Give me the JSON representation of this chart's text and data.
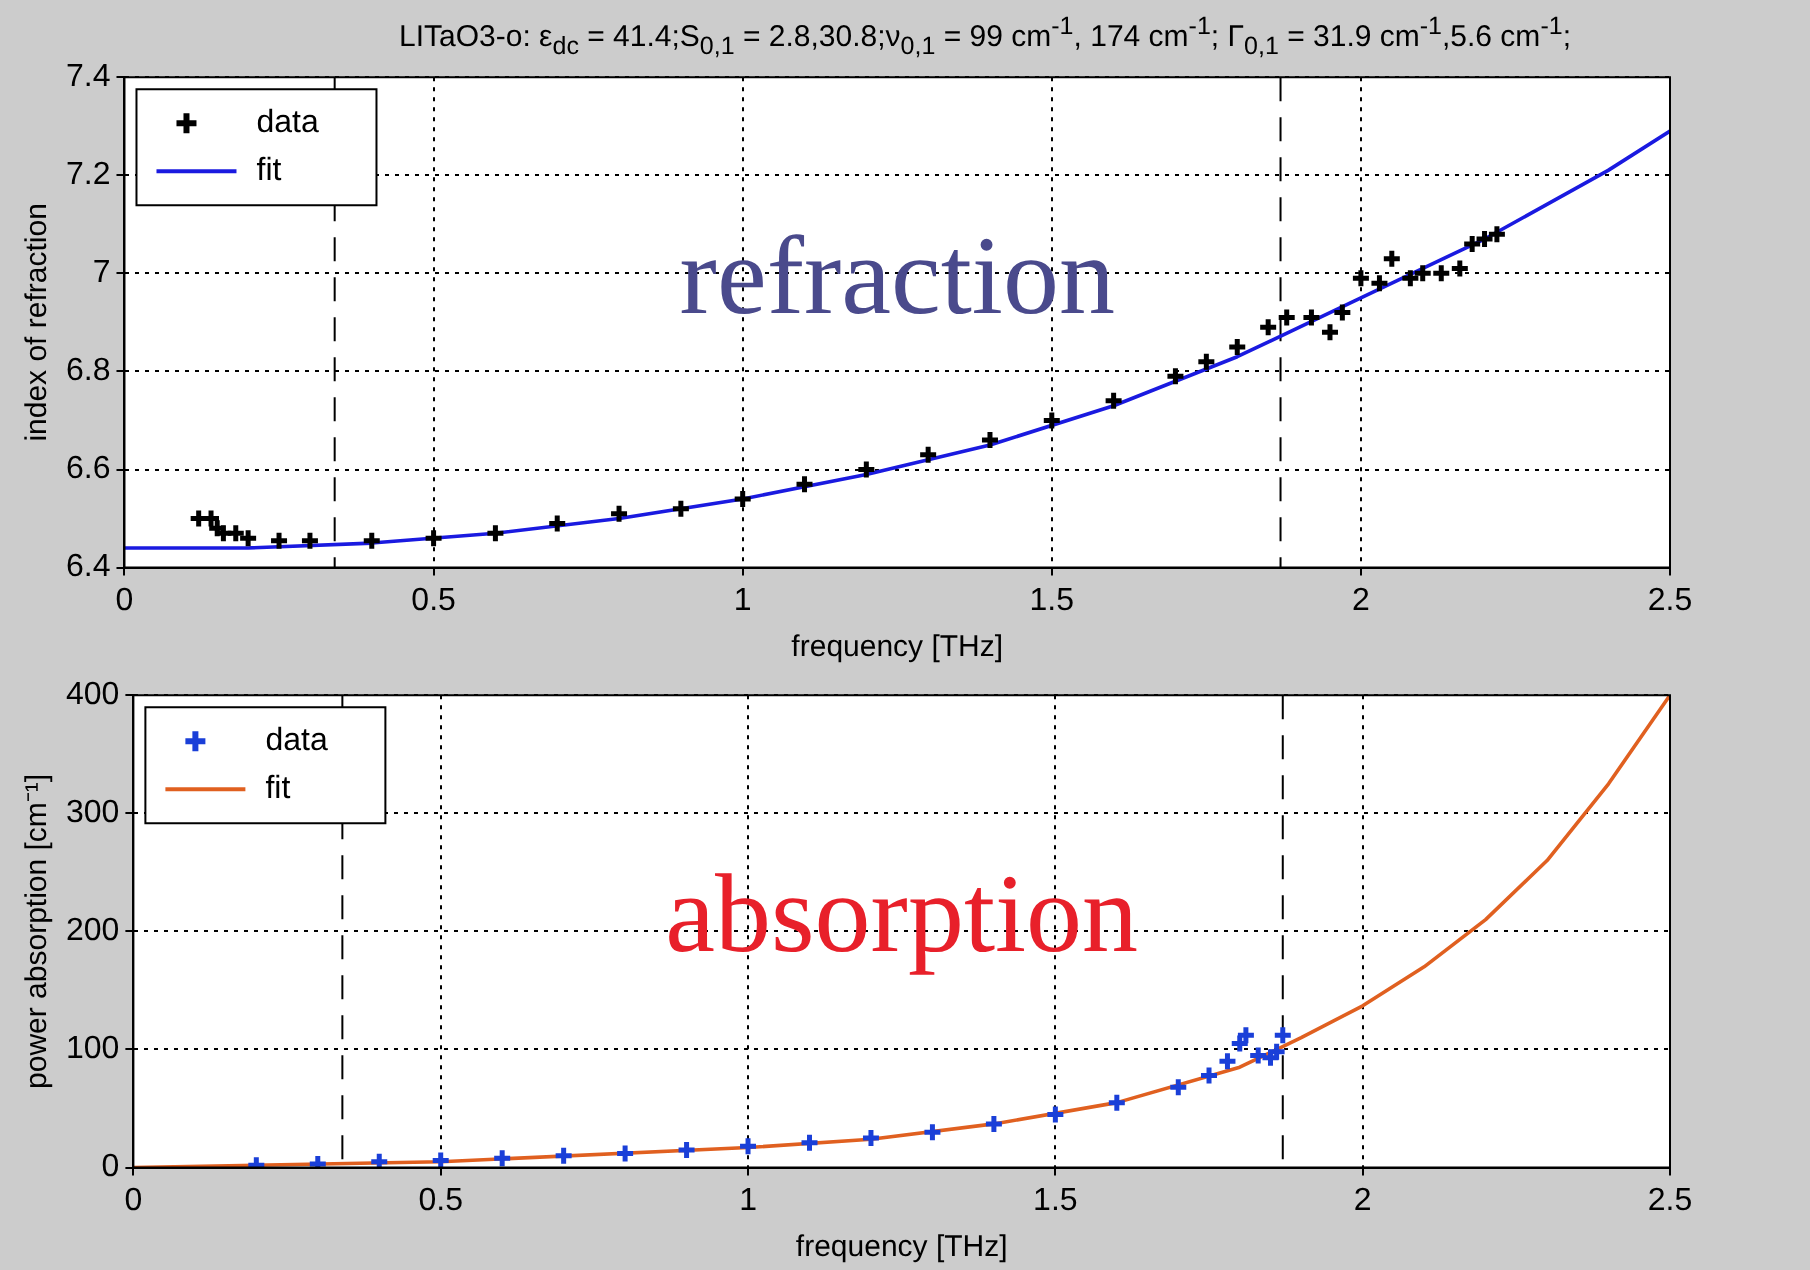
{
  "chart_data": [
    {
      "type": "scatter",
      "title": "LITaO3-o: ε$_{dc}$ = 41.4;S$_{0,1}$ = 2.8,30.8;ν$_{0,1}$ = 99 cm$^{-1}$, 174 cm$^{-1}$; Γ$_{0,1}$ = 31.9 cm$^{-1}$,5.6 cm$^{-1}$;",
      "xlabel": "frequency [THz]",
      "ylabel": "index of refraction",
      "xlim": [
        0,
        2.5
      ],
      "xticks": [
        0,
        0.5,
        1,
        1.5,
        2,
        2.5
      ],
      "ylim": [
        6.4,
        7.4
      ],
      "yticks": [
        6.4,
        6.6,
        6.8,
        7,
        7.2,
        7.4
      ],
      "grid": true,
      "legend": "top left",
      "annotations": [
        "refraction"
      ],
      "ref_lines": [
        {
          "axis": "x",
          "value": 0.34,
          "line_style": "dashed",
          "color": "#000000"
        },
        {
          "axis": "x",
          "value": 1.87,
          "line_style": "dashed",
          "color": "#000000"
        }
      ],
      "series": [
        {
          "name": "data",
          "type": "scatter",
          "marker": "cross",
          "color": "#000000",
          "x": [
            0.12,
            0.14,
            0.15,
            0.16,
            0.18,
            0.2,
            0.25,
            0.3,
            0.4,
            0.5,
            0.6,
            0.7,
            0.8,
            0.9,
            1.0,
            1.1,
            1.2,
            1.3,
            1.4,
            1.5,
            1.6,
            1.7,
            1.75,
            1.8,
            1.85,
            1.88,
            1.92,
            1.95,
            1.97,
            2.0,
            2.03,
            2.05,
            2.08,
            2.1,
            2.13,
            2.16,
            2.18,
            2.2,
            2.22
          ],
          "values": [
            6.5,
            6.5,
            6.48,
            6.47,
            6.47,
            6.46,
            6.455,
            6.455,
            6.455,
            6.46,
            6.47,
            6.49,
            6.51,
            6.52,
            6.54,
            6.57,
            6.6,
            6.63,
            6.66,
            6.7,
            6.74,
            6.79,
            6.82,
            6.85,
            6.89,
            6.91,
            6.91,
            6.88,
            6.92,
            6.99,
            6.98,
            7.03,
            6.99,
            7.0,
            7.0,
            7.01,
            7.06,
            7.07,
            7.08
          ]
        },
        {
          "name": "fit",
          "type": "line",
          "marker": "none",
          "color": "#1a1ae0",
          "x": [
            0,
            0.2,
            0.4,
            0.6,
            0.8,
            1.0,
            1.2,
            1.4,
            1.6,
            1.8,
            1.9,
            2.0,
            2.2,
            2.4,
            2.5
          ],
          "values": [
            6.44,
            6.44,
            6.45,
            6.47,
            6.5,
            6.54,
            6.59,
            6.65,
            6.73,
            6.83,
            6.89,
            6.95,
            7.07,
            7.21,
            7.29
          ]
        }
      ]
    },
    {
      "type": "scatter",
      "xlabel": "frequency [THz]",
      "ylabel": "power absorption [cm⁻¹]",
      "xlim": [
        0,
        2.5
      ],
      "xticks": [
        0,
        0.5,
        1,
        1.5,
        2,
        2.5
      ],
      "ylim": [
        0,
        400
      ],
      "yticks": [
        0,
        100,
        200,
        300,
        400
      ],
      "grid": true,
      "legend": "top left",
      "annotations": [
        "absorption"
      ],
      "ref_lines": [
        {
          "axis": "x",
          "value": 0.34,
          "line_style": "dashed",
          "color": "#000000"
        },
        {
          "axis": "x",
          "value": 1.87,
          "line_style": "dashed",
          "color": "#000000"
        }
      ],
      "series": [
        {
          "name": "data",
          "type": "scatter",
          "marker": "cross",
          "color": "#1a3fd8",
          "x": [
            0.2,
            0.3,
            0.4,
            0.5,
            0.6,
            0.7,
            0.8,
            0.9,
            1.0,
            1.1,
            1.2,
            1.3,
            1.4,
            1.5,
            1.6,
            1.7,
            1.75,
            1.78,
            1.8,
            1.81,
            1.83,
            1.85,
            1.86,
            1.87
          ],
          "values": [
            2,
            3,
            5,
            6,
            8,
            10,
            12,
            15,
            18,
            21,
            25,
            30,
            37,
            45,
            55,
            68,
            78,
            90,
            105,
            112,
            95,
            93,
            98,
            112
          ]
        },
        {
          "name": "fit",
          "type": "line",
          "marker": "none",
          "color": "#e06020",
          "x": [
            0,
            0.5,
            1.0,
            1.2,
            1.4,
            1.6,
            1.8,
            1.9,
            2.0,
            2.1,
            2.2,
            2.3,
            2.4,
            2.5
          ],
          "values": [
            0,
            5,
            17,
            24,
            37,
            55,
            85,
            110,
            137,
            170,
            210,
            260,
            325,
            400
          ]
        }
      ]
    }
  ]
}
